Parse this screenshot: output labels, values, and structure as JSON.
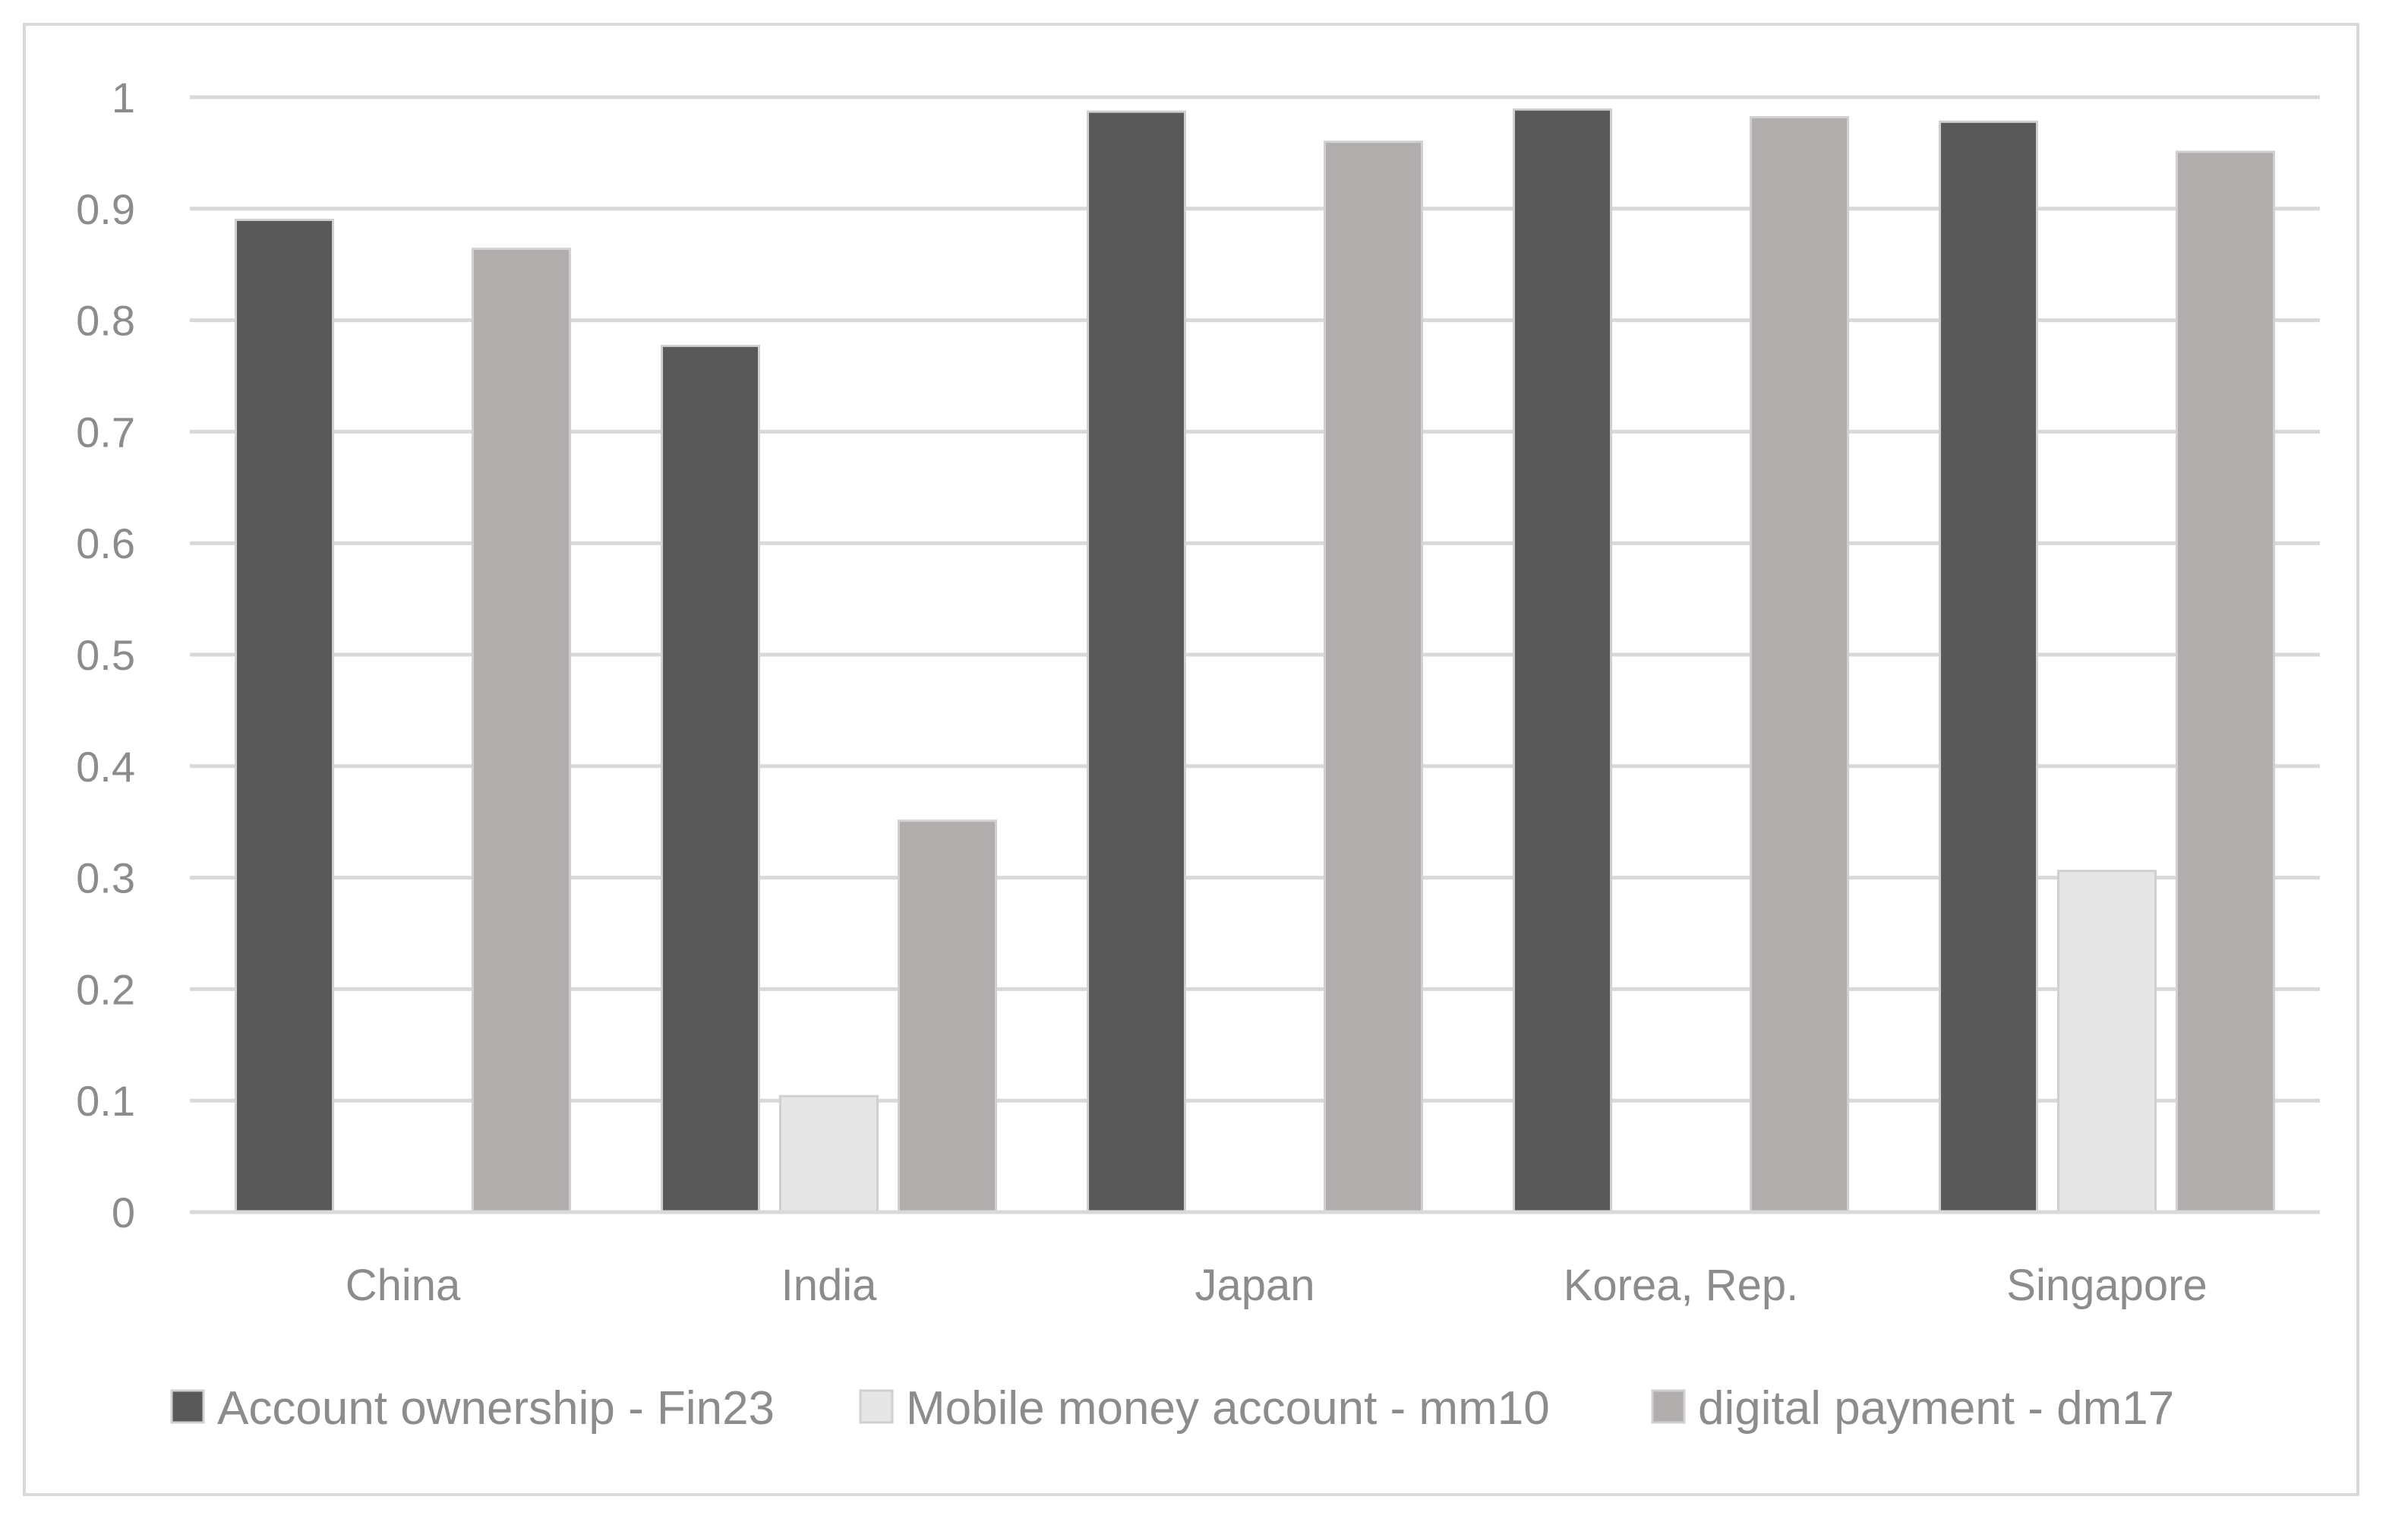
{
  "chart_data": {
    "type": "bar",
    "title": "",
    "xlabel": "",
    "ylabel": "",
    "ylim": [
      0,
      1
    ],
    "yticks": [
      "0",
      "0.1",
      "0.2",
      "0.3",
      "0.4",
      "0.5",
      "0.6",
      "0.7",
      "0.8",
      "0.9",
      "1"
    ],
    "grid": true,
    "legend_position": "bottom",
    "categories": [
      "China",
      "India",
      "Japan",
      "Korea, Rep.",
      "Singapore"
    ],
    "series": [
      {
        "name": "Account ownership - Fin23",
        "color": "#595959",
        "values": [
          0.89,
          0.777,
          0.987,
          0.989,
          0.978
        ]
      },
      {
        "name": "Mobile money account - mm10",
        "color": "#e6e6e6",
        "values": [
          null,
          0.104,
          null,
          null,
          0.306
        ]
      },
      {
        "name": "digital payment - dm17",
        "color": "#b0adac",
        "values": [
          0.864,
          0.351,
          0.96,
          0.982,
          0.951
        ]
      }
    ]
  }
}
